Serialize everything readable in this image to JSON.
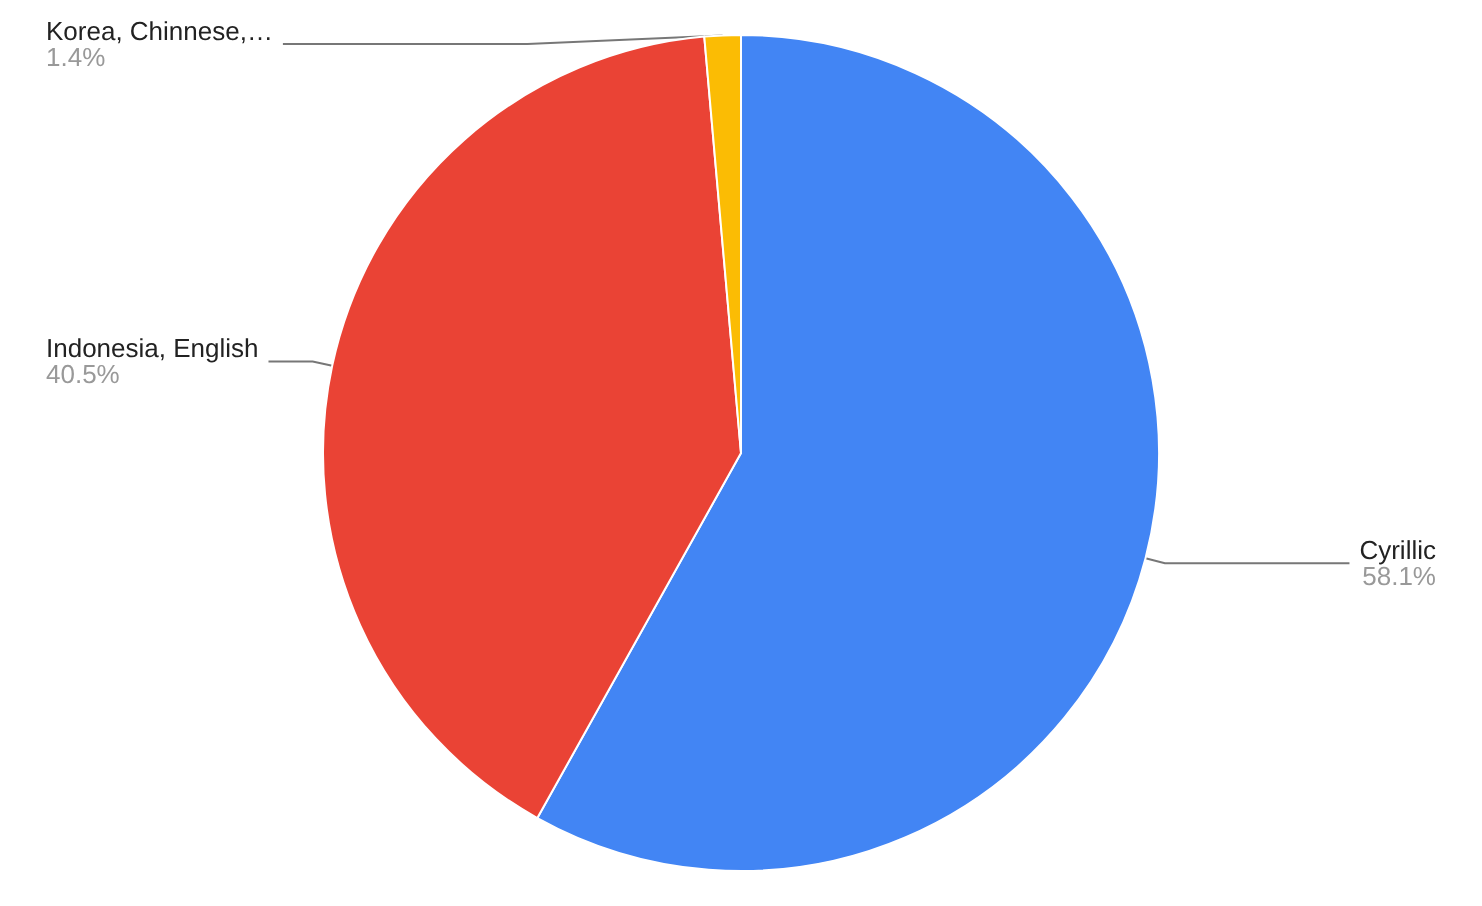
{
  "chart_data": {
    "type": "pie",
    "categories": [
      "Cyrillic",
      "Indonesia, English",
      "Korea, Chinnese,…"
    ],
    "values": [
      58.1,
      40.5,
      1.4
    ],
    "colors": [
      "#4285f4",
      "#ea4335",
      "#fbbc04"
    ],
    "value_labels": [
      "58.1%",
      "40.5%",
      "1.4%"
    ]
  }
}
